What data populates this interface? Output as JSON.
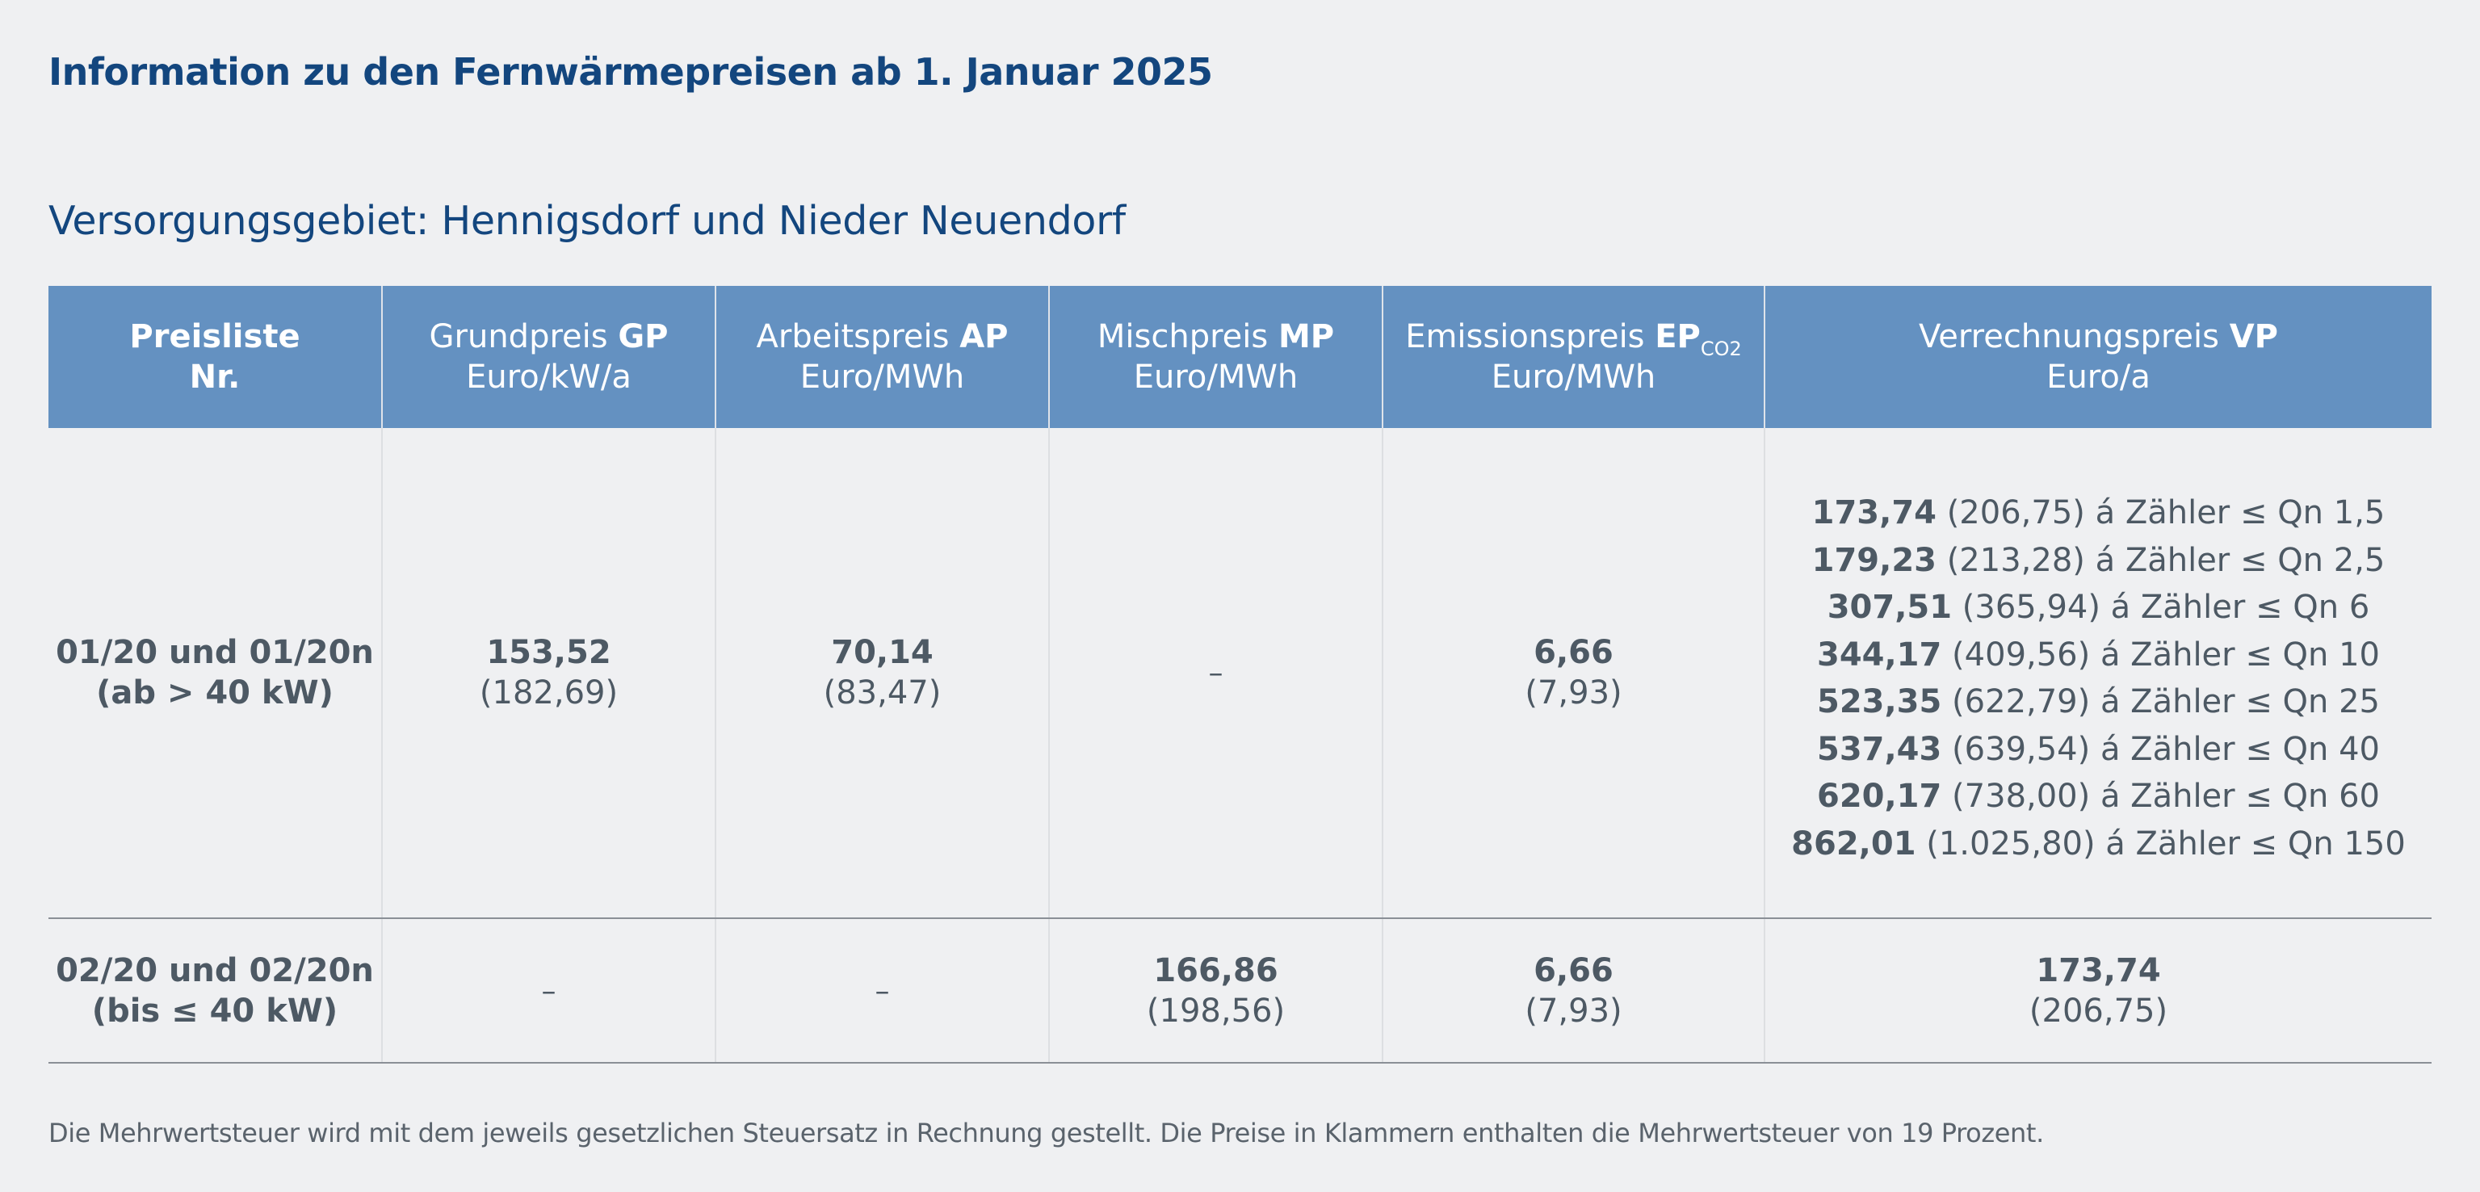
{
  "title": "Information zu den Fernwärmepreisen ab 1. Januar 2025",
  "subtitle": "Versorgungsgebiet: Hennigsdorf und Nieder Neuendorf",
  "headers": {
    "nr": {
      "line1": "Preisliste",
      "line2": "Nr."
    },
    "gp": {
      "name": "Grundpreis ",
      "abbr": "GP",
      "unit": "Euro/kW/a"
    },
    "ap": {
      "name": "Arbeitspreis ",
      "abbr": "AP",
      "unit": "Euro/MWh"
    },
    "mp": {
      "name": "Mischpreis ",
      "abbr": "MP",
      "unit": "Euro/MWh"
    },
    "ep": {
      "name": "Emissionspreis ",
      "abbr": "EP",
      "sub": "CO2",
      "unit": "Euro/MWh"
    },
    "vp": {
      "name": "Verrechnungspreis ",
      "abbr": "VP",
      "unit": "Euro/a"
    }
  },
  "rows": [
    {
      "nr": {
        "line1": "01/20 und 01/20n",
        "line2": "(ab > 40 kW)"
      },
      "gp": {
        "net": "153,52",
        "gross": "(182,69)"
      },
      "ap": {
        "net": "70,14",
        "gross": "(83,47)"
      },
      "mp": {
        "dash": "–"
      },
      "ep": {
        "net": "6,66",
        "gross": "(7,93)"
      },
      "vp": [
        {
          "net": "173,74",
          "rest": " (206,75) á Zähler ≤ Qn 1,5"
        },
        {
          "net": "179,23",
          "rest": " (213,28) á Zähler ≤ Qn 2,5"
        },
        {
          "net": "307,51",
          "rest": " (365,94) á Zähler ≤ Qn 6"
        },
        {
          "net": "344,17",
          "rest": " (409,56) á Zähler ≤ Qn 10"
        },
        {
          "net": "523,35",
          "rest": " (622,79) á Zähler ≤ Qn 25"
        },
        {
          "net": "537,43",
          "rest": " (639,54) á Zähler ≤ Qn 40"
        },
        {
          "net": "620,17",
          "rest": " (738,00) á Zähler ≤ Qn 60"
        },
        {
          "net": "862,01",
          "rest": " (1.025,80) á Zähler ≤ Qn 150"
        }
      ]
    },
    {
      "nr": {
        "line1": "02/20 und 02/20n",
        "line2": "(bis ≤ 40 kW)"
      },
      "gp": {
        "dash": "–"
      },
      "ap": {
        "dash": "–"
      },
      "mp": {
        "net": "166,86",
        "gross": "(198,56)"
      },
      "ep": {
        "net": "6,66",
        "gross": "(7,93)"
      },
      "vp": {
        "net": "173,74",
        "gross": "(206,75)"
      }
    }
  ],
  "footnote": "Die Mehrwertsteuer wird mit dem jeweils gesetzlichen Steuersatz in Rechnung gestellt. Die Preise in Klammern enthalten die Mehrwertsteuer von 19 Prozent.",
  "colors": {
    "title": "#13467e",
    "header_bg": "#6491c1",
    "background": "#eff0f2",
    "text": "#4d5964"
  }
}
